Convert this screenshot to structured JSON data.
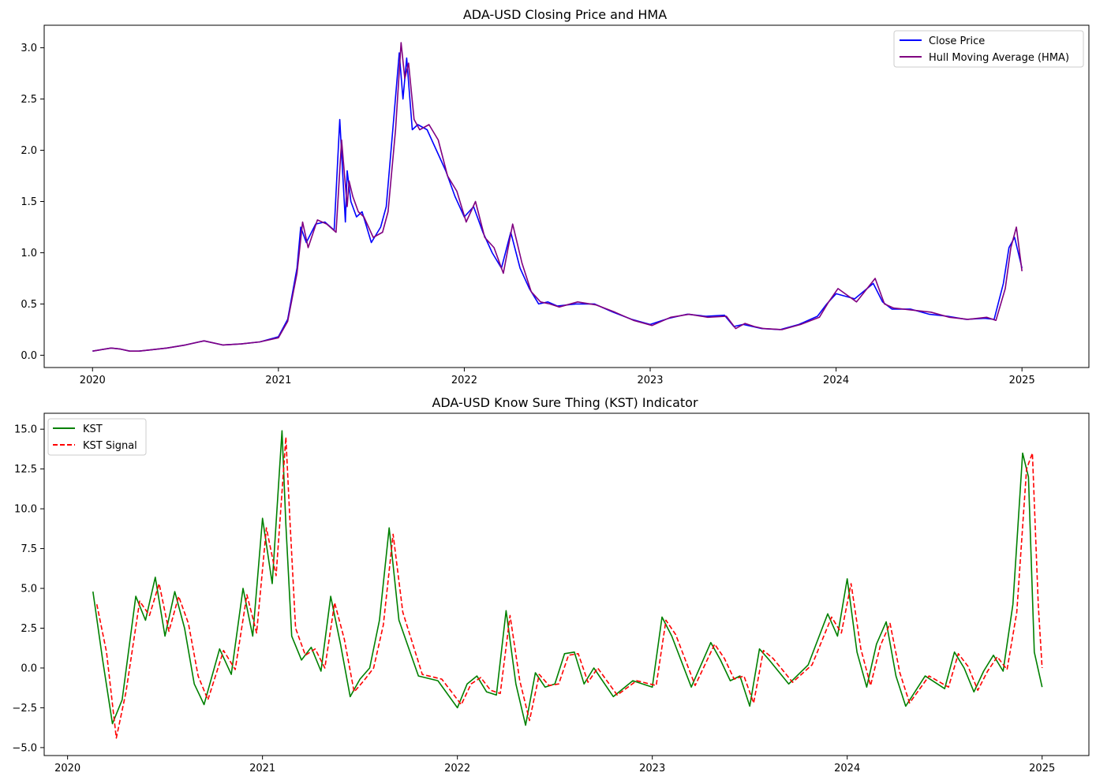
{
  "chart_data": [
    {
      "type": "line",
      "title": "ADA-USD Closing Price and HMA",
      "xlabel": "",
      "ylabel": "",
      "x_range": [
        2019.74,
        2025.36
      ],
      "ylim": [
        -0.12,
        3.22
      ],
      "x_ticks": [
        2020,
        2021,
        2022,
        2023,
        2024,
        2025
      ],
      "x_tick_labels": [
        "2020",
        "2021",
        "2022",
        "2023",
        "2024",
        "2025"
      ],
      "y_ticks": [
        0.0,
        0.5,
        1.0,
        1.5,
        2.0,
        2.5,
        3.0
      ],
      "y_tick_labels": [
        "0.0",
        "0.5",
        "1.0",
        "1.5",
        "2.0",
        "2.5",
        "3.0"
      ],
      "grid": false,
      "legend_position": "top-right",
      "series": [
        {
          "name": "Close Price",
          "color": "#0000ff",
          "style": "solid",
          "x": [
            2020.0,
            2020.1,
            2020.15,
            2020.2,
            2020.25,
            2020.3,
            2020.4,
            2020.5,
            2020.6,
            2020.7,
            2020.8,
            2020.9,
            2021.0,
            2021.05,
            2021.1,
            2021.12,
            2021.15,
            2021.2,
            2021.25,
            2021.3,
            2021.33,
            2021.36,
            2021.37,
            2021.39,
            2021.42,
            2021.45,
            2021.5,
            2021.55,
            2021.58,
            2021.62,
            2021.65,
            2021.67,
            2021.69,
            2021.72,
            2021.75,
            2021.8,
            2021.85,
            2021.9,
            2021.95,
            2022.0,
            2022.05,
            2022.1,
            2022.15,
            2022.2,
            2022.25,
            2022.3,
            2022.35,
            2022.4,
            2022.45,
            2022.5,
            2022.6,
            2022.7,
            2022.8,
            2022.9,
            2023.0,
            2023.1,
            2023.2,
            2023.3,
            2023.4,
            2023.45,
            2023.5,
            2023.55,
            2023.6,
            2023.7,
            2023.8,
            2023.9,
            2023.95,
            2024.0,
            2024.1,
            2024.2,
            2024.25,
            2024.3,
            2024.4,
            2024.5,
            2024.6,
            2024.7,
            2024.8,
            2024.85,
            2024.9,
            2024.93,
            2024.96,
            2025.0
          ],
          "values": [
            0.04,
            0.07,
            0.06,
            0.04,
            0.04,
            0.05,
            0.07,
            0.1,
            0.14,
            0.1,
            0.11,
            0.13,
            0.18,
            0.35,
            0.85,
            1.25,
            1.1,
            1.28,
            1.3,
            1.22,
            2.3,
            1.3,
            1.8,
            1.5,
            1.35,
            1.4,
            1.1,
            1.25,
            1.45,
            2.3,
            2.95,
            2.5,
            2.9,
            2.2,
            2.25,
            2.2,
            2.0,
            1.8,
            1.55,
            1.35,
            1.45,
            1.2,
            1.0,
            0.85,
            1.2,
            0.85,
            0.65,
            0.5,
            0.52,
            0.48,
            0.5,
            0.5,
            0.42,
            0.35,
            0.3,
            0.36,
            0.4,
            0.38,
            0.39,
            0.28,
            0.3,
            0.28,
            0.26,
            0.25,
            0.3,
            0.38,
            0.5,
            0.6,
            0.55,
            0.7,
            0.52,
            0.45,
            0.45,
            0.4,
            0.38,
            0.35,
            0.36,
            0.35,
            0.7,
            1.05,
            1.15,
            0.85
          ]
        },
        {
          "name": "Hull Moving Average (HMA)",
          "color": "#800080",
          "style": "solid",
          "x": [
            2020.0,
            2020.1,
            2020.15,
            2020.2,
            2020.25,
            2020.3,
            2020.4,
            2020.5,
            2020.6,
            2020.7,
            2020.8,
            2020.9,
            2021.0,
            2021.05,
            2021.1,
            2021.13,
            2021.16,
            2021.21,
            2021.26,
            2021.31,
            2021.34,
            2021.37,
            2021.38,
            2021.4,
            2021.43,
            2021.46,
            2021.51,
            2021.56,
            2021.59,
            2021.63,
            2021.66,
            2021.68,
            2021.7,
            2021.73,
            2021.76,
            2021.81,
            2021.86,
            2021.91,
            2021.96,
            2022.01,
            2022.06,
            2022.11,
            2022.16,
            2022.21,
            2022.26,
            2022.31,
            2022.36,
            2022.41,
            2022.46,
            2022.51,
            2022.61,
            2022.71,
            2022.81,
            2022.91,
            2023.01,
            2023.11,
            2023.21,
            2023.31,
            2023.41,
            2023.46,
            2023.51,
            2023.56,
            2023.61,
            2023.71,
            2023.81,
            2023.91,
            2023.96,
            2024.01,
            2024.11,
            2024.21,
            2024.26,
            2024.31,
            2024.41,
            2024.51,
            2024.61,
            2024.71,
            2024.81,
            2024.86,
            2024.91,
            2024.94,
            2024.97,
            2025.0
          ],
          "values": [
            0.04,
            0.07,
            0.06,
            0.04,
            0.04,
            0.05,
            0.07,
            0.1,
            0.14,
            0.1,
            0.11,
            0.13,
            0.17,
            0.33,
            0.8,
            1.3,
            1.05,
            1.32,
            1.28,
            1.2,
            2.1,
            1.45,
            1.7,
            1.55,
            1.4,
            1.35,
            1.15,
            1.2,
            1.4,
            2.2,
            3.05,
            2.7,
            2.85,
            2.3,
            2.2,
            2.25,
            2.1,
            1.75,
            1.6,
            1.3,
            1.5,
            1.15,
            1.05,
            0.8,
            1.28,
            0.9,
            0.62,
            0.52,
            0.5,
            0.47,
            0.52,
            0.49,
            0.42,
            0.34,
            0.29,
            0.37,
            0.4,
            0.37,
            0.38,
            0.26,
            0.31,
            0.28,
            0.26,
            0.25,
            0.3,
            0.37,
            0.52,
            0.65,
            0.52,
            0.75,
            0.5,
            0.46,
            0.44,
            0.42,
            0.37,
            0.35,
            0.37,
            0.34,
            0.65,
            1.05,
            1.25,
            0.82
          ]
        }
      ]
    },
    {
      "type": "line",
      "title": "ADA-USD Know Sure Thing (KST) Indicator",
      "xlabel": "",
      "ylabel": "",
      "x_range": [
        2019.88,
        2025.24
      ],
      "ylim": [
        -5.5,
        16.0
      ],
      "x_ticks": [
        2020,
        2021,
        2022,
        2023,
        2024,
        2025
      ],
      "x_tick_labels": [
        "2020",
        "2021",
        "2022",
        "2023",
        "2024",
        "2025"
      ],
      "y_ticks": [
        -5.0,
        -2.5,
        0.0,
        2.5,
        5.0,
        7.5,
        10.0,
        12.5,
        15.0
      ],
      "y_tick_labels": [
        "−5.0",
        "−2.5",
        "0.0",
        "2.5",
        "5.0",
        "7.5",
        "10.0",
        "12.5",
        "15.0"
      ],
      "grid": false,
      "legend_position": "top-left",
      "series": [
        {
          "name": "KST",
          "color": "#008000",
          "style": "solid",
          "x": [
            2020.13,
            2020.18,
            2020.23,
            2020.28,
            2020.35,
            2020.4,
            2020.45,
            2020.5,
            2020.55,
            2020.6,
            2020.65,
            2020.7,
            2020.78,
            2020.84,
            2020.9,
            2020.95,
            2021.0,
            2021.05,
            2021.1,
            2021.12,
            2021.15,
            2021.2,
            2021.25,
            2021.3,
            2021.35,
            2021.4,
            2021.45,
            2021.5,
            2021.55,
            2021.6,
            2021.65,
            2021.7,
            2021.8,
            2021.9,
            2022.0,
            2022.05,
            2022.1,
            2022.15,
            2022.2,
            2022.25,
            2022.3,
            2022.35,
            2022.4,
            2022.45,
            2022.5,
            2022.55,
            2022.6,
            2022.65,
            2022.7,
            2022.8,
            2022.9,
            2023.0,
            2023.05,
            2023.1,
            2023.2,
            2023.3,
            2023.35,
            2023.4,
            2023.45,
            2023.5,
            2023.55,
            2023.6,
            2023.7,
            2023.8,
            2023.9,
            2023.95,
            2024.0,
            2024.05,
            2024.1,
            2024.15,
            2024.2,
            2024.25,
            2024.3,
            2024.4,
            2024.5,
            2024.55,
            2024.6,
            2024.65,
            2024.7,
            2024.75,
            2024.8,
            2024.85,
            2024.9,
            2024.93,
            2024.96,
            2025.0
          ],
          "values": [
            4.8,
            0.5,
            -3.5,
            -2.0,
            4.5,
            3.0,
            5.7,
            2.0,
            4.8,
            2.5,
            -1.0,
            -2.3,
            1.2,
            -0.4,
            5.0,
            2.0,
            9.4,
            5.3,
            14.9,
            9.0,
            2.0,
            0.5,
            1.3,
            -0.2,
            4.5,
            1.5,
            -1.8,
            -0.7,
            0.0,
            3.0,
            8.8,
            3.0,
            -0.5,
            -0.8,
            -2.5,
            -1.0,
            -0.5,
            -1.5,
            -1.7,
            3.6,
            -1.0,
            -3.6,
            -0.3,
            -1.2,
            -1.0,
            0.9,
            1.0,
            -1.0,
            0.0,
            -1.8,
            -0.8,
            -1.2,
            3.2,
            2.0,
            -1.2,
            1.6,
            0.5,
            -0.8,
            -0.5,
            -2.4,
            1.2,
            0.5,
            -1.0,
            0.2,
            3.4,
            2.0,
            5.6,
            1.0,
            -1.2,
            1.5,
            2.9,
            -0.5,
            -2.4,
            -0.5,
            -1.3,
            1.0,
            0.0,
            -1.5,
            -0.2,
            0.8,
            -0.2,
            4.0,
            13.5,
            12.0,
            1.0,
            -1.2
          ]
        },
        {
          "name": "KST Signal",
          "color": "#ff0000",
          "style": "dashed",
          "x": [
            2020.15,
            2020.2,
            2020.25,
            2020.3,
            2020.37,
            2020.42,
            2020.47,
            2020.52,
            2020.57,
            2020.62,
            2020.67,
            2020.72,
            2020.8,
            2020.86,
            2020.92,
            2020.97,
            2021.02,
            2021.07,
            2021.12,
            2021.14,
            2021.17,
            2021.22,
            2021.27,
            2021.32,
            2021.37,
            2021.42,
            2021.47,
            2021.52,
            2021.57,
            2021.62,
            2021.67,
            2021.72,
            2021.82,
            2021.92,
            2022.02,
            2022.07,
            2022.12,
            2022.17,
            2022.22,
            2022.27,
            2022.32,
            2022.37,
            2022.42,
            2022.47,
            2022.52,
            2022.57,
            2022.62,
            2022.67,
            2022.72,
            2022.82,
            2022.92,
            2023.02,
            2023.07,
            2023.12,
            2023.22,
            2023.32,
            2023.37,
            2023.42,
            2023.47,
            2023.52,
            2023.57,
            2023.62,
            2023.72,
            2023.82,
            2023.92,
            2023.97,
            2024.02,
            2024.07,
            2024.12,
            2024.17,
            2024.22,
            2024.27,
            2024.32,
            2024.42,
            2024.52,
            2024.57,
            2024.62,
            2024.67,
            2024.72,
            2024.77,
            2024.82,
            2024.87,
            2024.92,
            2024.95,
            2024.98,
            2025.0
          ],
          "values": [
            4.0,
            1.0,
            -4.4,
            -1.5,
            4.2,
            3.3,
            5.3,
            2.3,
            4.5,
            2.8,
            -0.5,
            -2.0,
            1.1,
            -0.1,
            4.6,
            2.2,
            8.8,
            5.8,
            14.5,
            9.5,
            2.5,
            0.8,
            1.2,
            0.0,
            4.1,
            1.8,
            -1.5,
            -0.8,
            0.0,
            2.7,
            8.4,
            3.5,
            -0.4,
            -0.7,
            -2.3,
            -1.0,
            -0.6,
            -1.4,
            -1.6,
            3.3,
            -0.8,
            -3.3,
            -0.4,
            -1.1,
            -1.0,
            0.8,
            0.9,
            -0.9,
            0.0,
            -1.7,
            -0.8,
            -1.1,
            3.0,
            2.1,
            -1.1,
            1.5,
            0.6,
            -0.7,
            -0.5,
            -2.2,
            1.1,
            0.6,
            -0.9,
            0.2,
            3.2,
            2.2,
            5.3,
            1.2,
            -1.1,
            1.4,
            2.8,
            -0.3,
            -2.2,
            -0.5,
            -1.2,
            0.9,
            0.1,
            -1.4,
            -0.2,
            0.7,
            -0.1,
            3.5,
            12.5,
            13.5,
            4.0,
            0.0
          ]
        }
      ]
    }
  ]
}
